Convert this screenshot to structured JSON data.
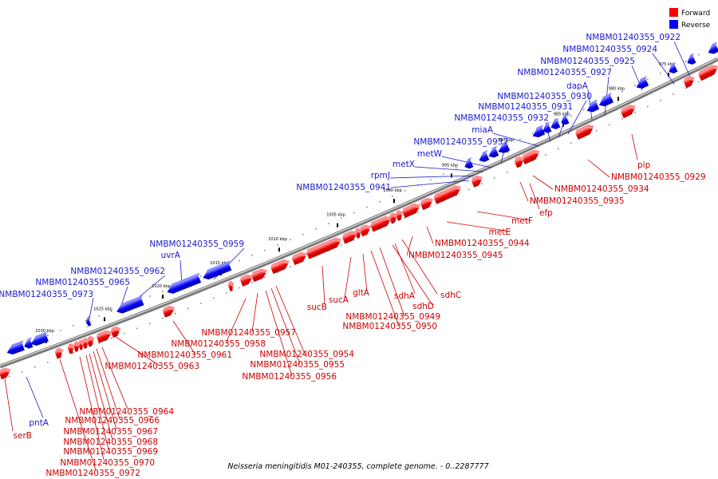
{
  "legend": {
    "forward": {
      "label": "Forward",
      "color": "#ff0000"
    },
    "reverse": {
      "label": "Reverse",
      "color": "#0000ff"
    }
  },
  "caption": "Neisseria meningitidis M01-240355, complete genome. - 0..2287777",
  "tick_labels": [
    "975 kbp",
    "980 kbp",
    "985 kbp",
    "990 kbp",
    "995 kbp",
    "1000 kbp",
    "1005 kbp",
    "1010 kbp",
    "1015 kbp",
    "1020 kbp",
    "1025 kbp",
    "1030 kbp"
  ],
  "reverse_labels": [
    "NMBM01240355_0922",
    "NMBM01240355_0924",
    "NMBM01240355_0925",
    "NMBM01240355_0927",
    "dapA",
    "NMBM01240355_0930",
    "NMBM01240355_0931",
    "NMBM01240355_0932",
    "miaA",
    "NMBM01240355_0937",
    "metW",
    "metX",
    "rpmJ",
    "NMBM01240355_0941",
    "NMBM01240355_0959",
    "uvrA",
    "NMBM01240355_0962",
    "NMBM01240355_0965",
    "NMBM01240355_0973",
    "pntA"
  ],
  "forward_labels": [
    "pip",
    "NMBM01240355_0929",
    "NMBM01240355_0934",
    "efp",
    "NMBM01240355_0935",
    "metF",
    "metE",
    "NMBM01240355_0944",
    "NMBM01240355_0945",
    "sdhC",
    "sdhA",
    "sdhD",
    "NMBM01240355_0949",
    "NMBM01240355_0950",
    "gltA",
    "sucA",
    "sucB",
    "NMBM01240355_0954",
    "NMBM01240355_0955",
    "NMBM01240355_0956",
    "NMBM01240355_0957",
    "NMBM01240355_0958",
    "NMBM01240355_0961",
    "NMBM01240355_0963",
    "NMBM01240355_0964",
    "NMBM01240355_0966",
    "NMBM01240355_0967",
    "NMBM01240355_0968",
    "NMBM01240355_0969",
    "NMBM01240355_0970",
    "NMBM01240355_0972",
    "serB"
  ]
}
